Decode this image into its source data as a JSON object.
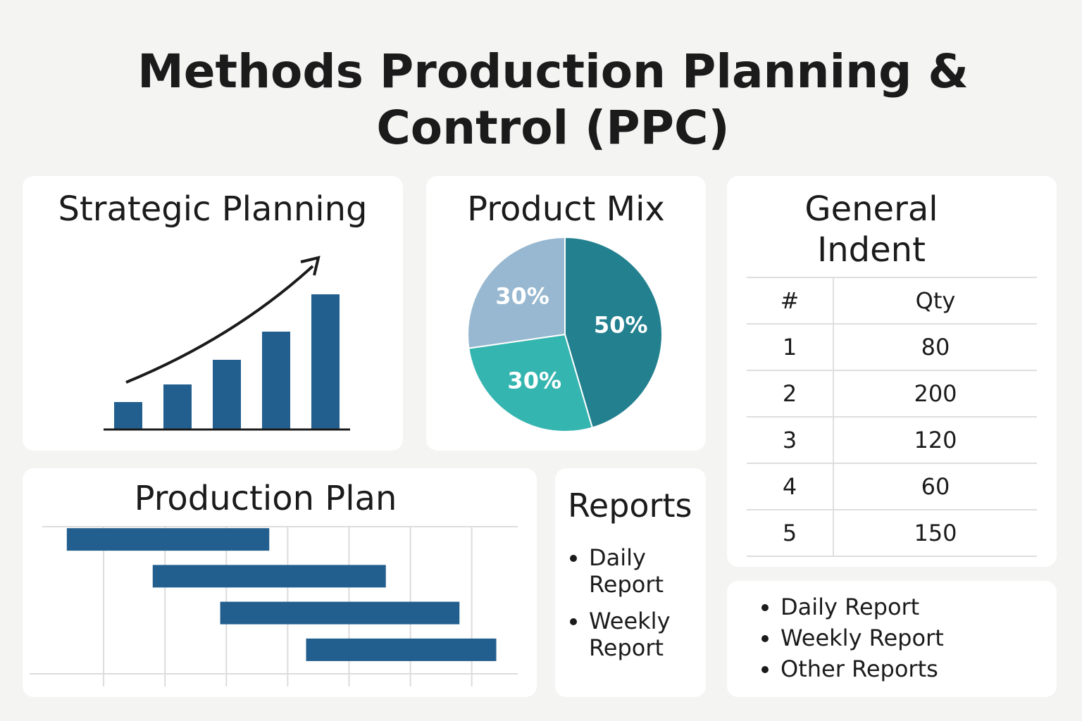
{
  "title": "Methods Production Planning & Control (PPC)",
  "chart_data": [
    {
      "type": "bar",
      "title": "Strategic Planning",
      "categories": [
        null,
        null,
        null,
        null,
        null
      ],
      "values": [
        39,
        64,
        99,
        139,
        192
      ],
      "color": "#235f8e",
      "ylim": [
        0,
        200
      ]
    },
    {
      "type": "pie",
      "title": "Product Mix",
      "categories": [
        null,
        null,
        null
      ],
      "values": [
        50,
        30,
        30
      ],
      "value_labels": [
        "50%",
        "30%",
        "30%"
      ],
      "colors": [
        "#23808f",
        "#35b5b0",
        "#97b8d0"
      ]
    },
    {
      "type": "gantt",
      "title": "Production Plan",
      "categories": [
        null,
        null,
        null,
        null
      ],
      "starts": [
        0.4,
        1.8,
        2.9,
        4.3
      ],
      "ends": [
        3.7,
        5.6,
        6.8,
        7.4
      ],
      "color": "#235f8e",
      "xlim": [
        0,
        7.75
      ],
      "xticks": [
        1,
        2,
        3,
        4,
        5,
        6,
        7
      ],
      "grid": true
    }
  ],
  "general_indent": {
    "title": "General Indent",
    "header": [
      "#",
      "Qty"
    ],
    "rows": [
      [
        1,
        80
      ],
      [
        2,
        200
      ],
      [
        3,
        120
      ],
      [
        4,
        60
      ],
      [
        5,
        150
      ]
    ]
  },
  "reports": {
    "title": "Reports",
    "items": [
      "Daily Report",
      "Weekly Report"
    ]
  },
  "report_list": {
    "items": [
      "Daily Report",
      "Weekly Report",
      "Other Reports"
    ]
  }
}
